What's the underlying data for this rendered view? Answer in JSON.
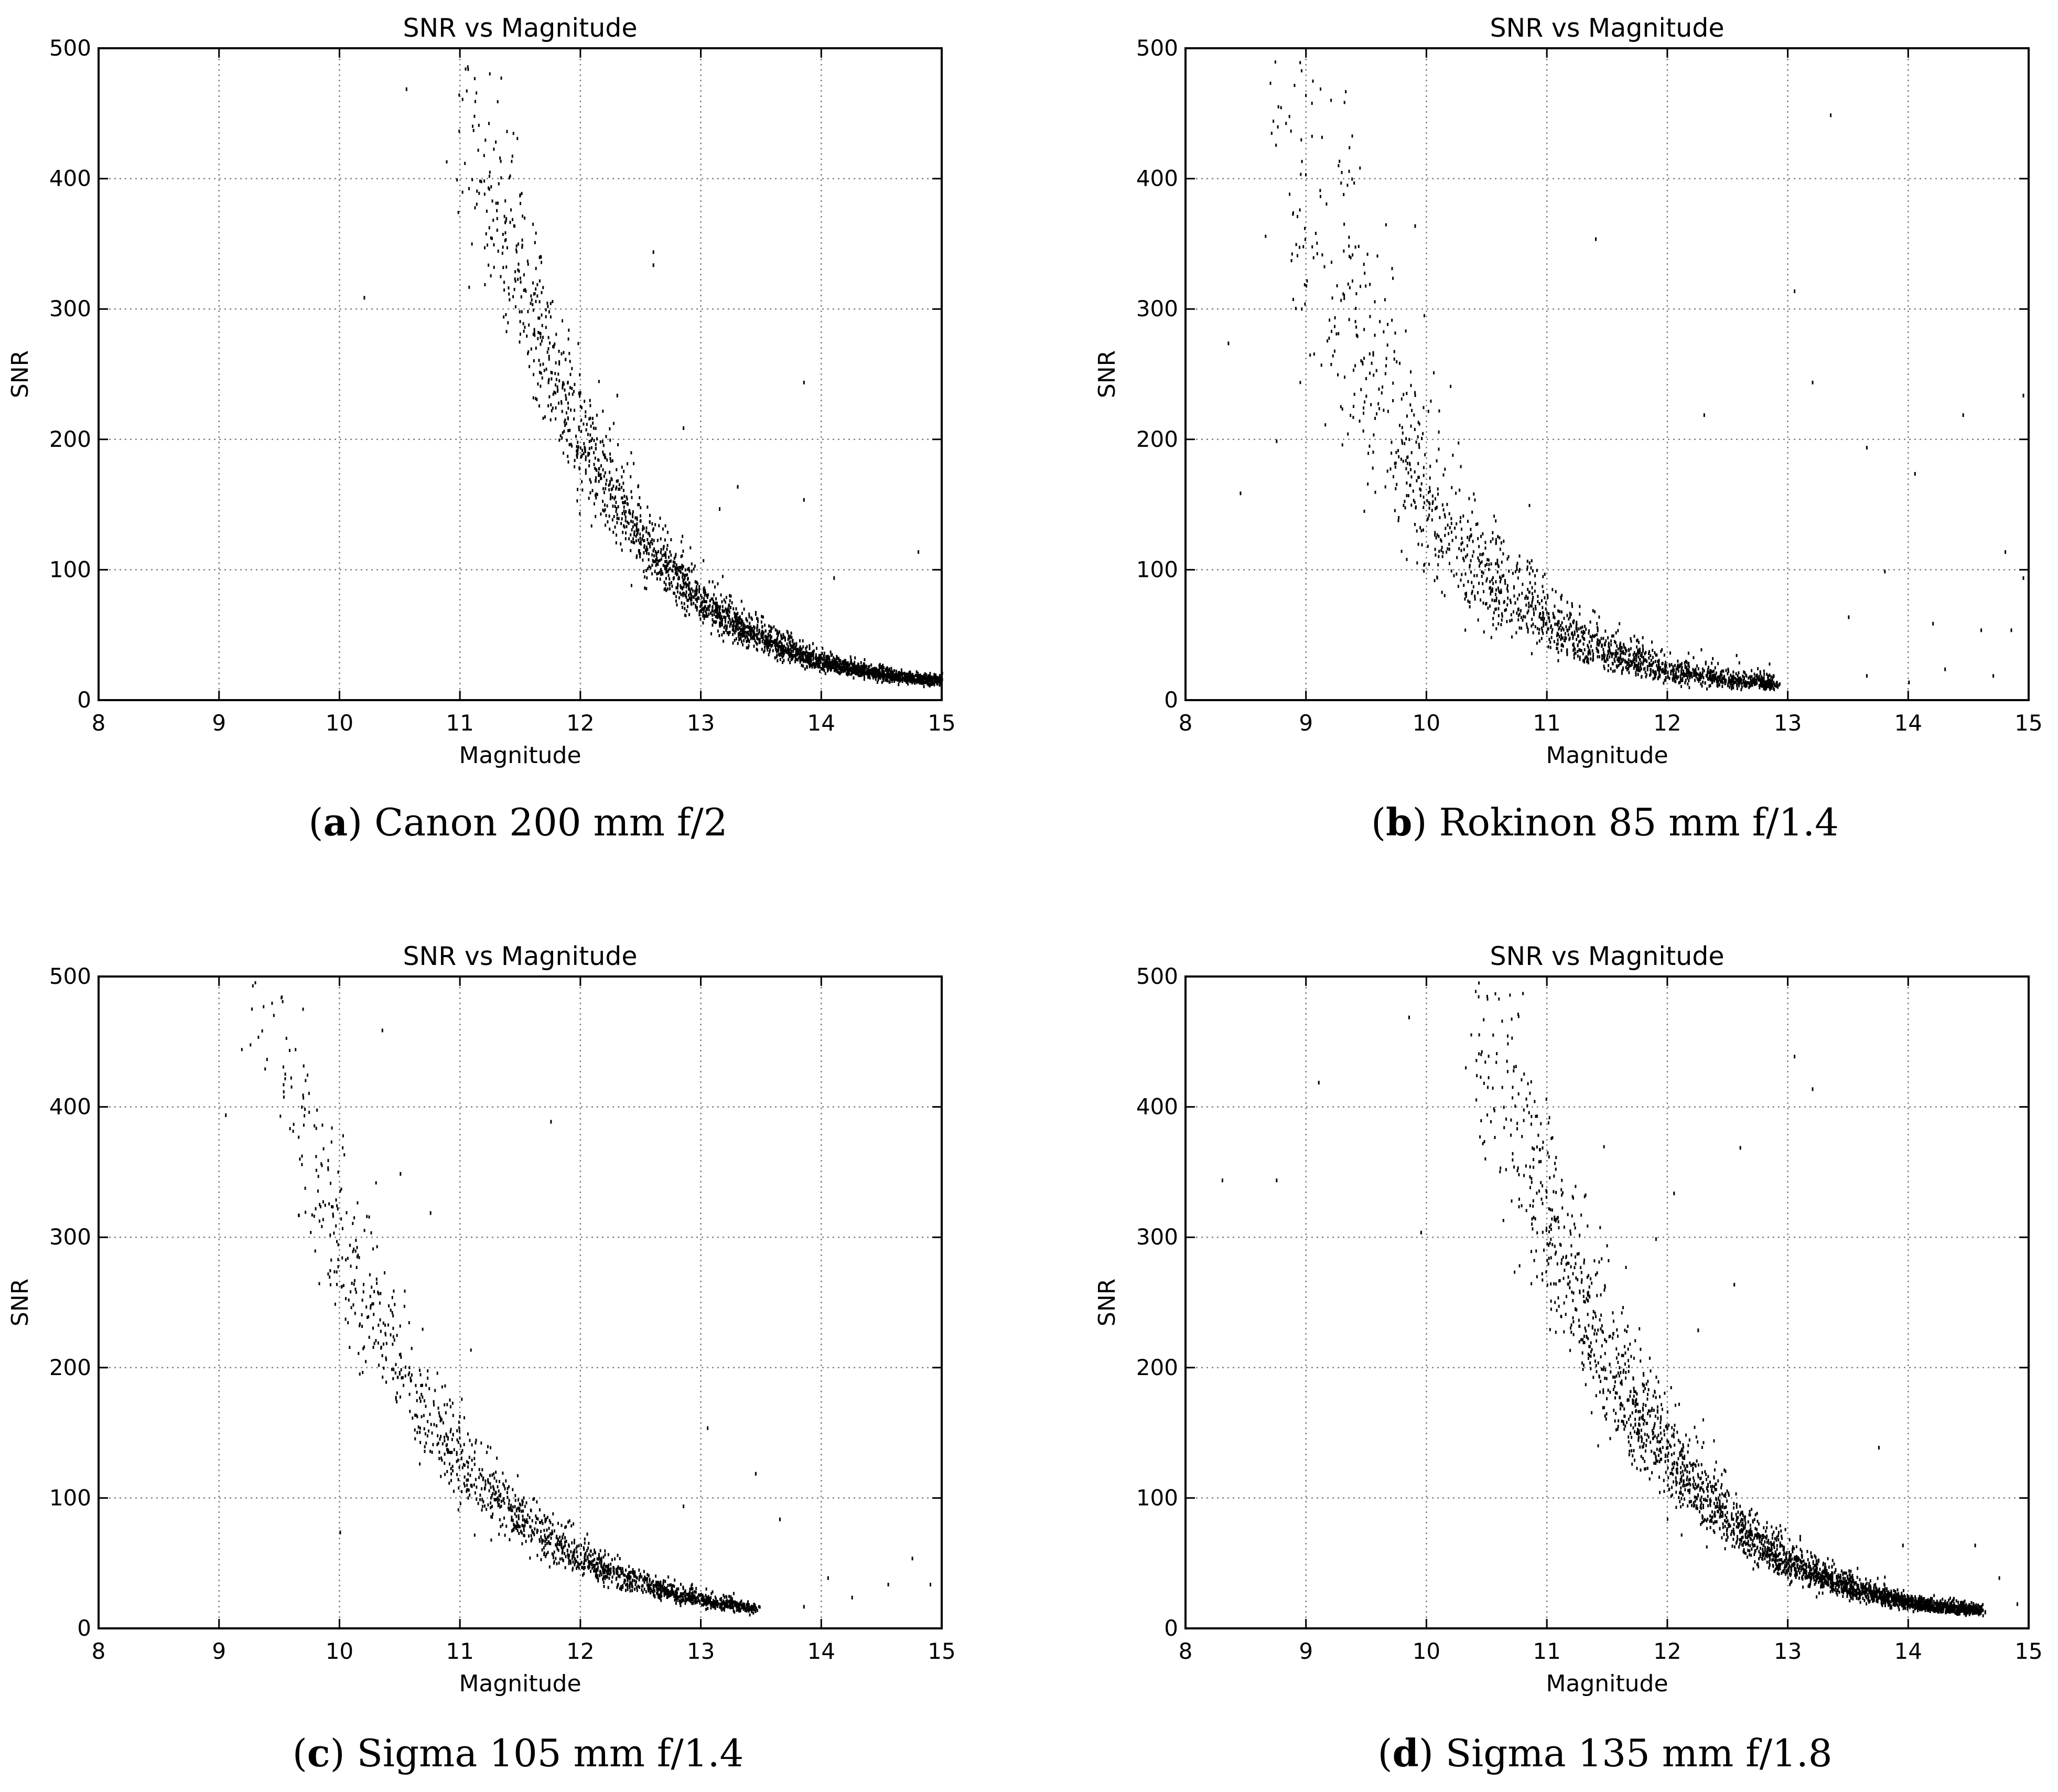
{
  "figure": {
    "colors": {
      "background": "#ffffff",
      "axes": "#000000",
      "grid": "#808080",
      "points": "#000000"
    }
  },
  "chart_data": [
    {
      "id": "a",
      "type": "scatter",
      "title": "SNR vs Magnitude",
      "xlabel": "Magnitude",
      "ylabel": "SNR",
      "xlim": [
        8,
        15
      ],
      "ylim": [
        0,
        500
      ],
      "xticks": [
        8,
        9,
        10,
        11,
        12,
        13,
        14,
        15
      ],
      "yticks": [
        0,
        100,
        200,
        300,
        400,
        500
      ],
      "grid": true,
      "caption_letter": "a",
      "caption_text": "Canon 200 mm f/2",
      "curve_points": [
        [
          10.9,
          500
        ],
        [
          11.2,
          410
        ],
        [
          11.5,
          320
        ],
        [
          11.8,
          245
        ],
        [
          12.1,
          185
        ],
        [
          12.4,
          140
        ],
        [
          12.7,
          105
        ],
        [
          13.0,
          77
        ],
        [
          13.3,
          58
        ],
        [
          13.6,
          45
        ],
        [
          13.9,
          33
        ],
        [
          14.2,
          26
        ],
        [
          14.5,
          21
        ],
        [
          14.8,
          17
        ],
        [
          15.0,
          16
        ]
      ],
      "n_points": 2600,
      "spread": 0.12,
      "outliers": [
        [
          10.2,
          310
        ],
        [
          10.55,
          470
        ],
        [
          12.6,
          345
        ],
        [
          12.6,
          335
        ],
        [
          13.85,
          245
        ],
        [
          13.85,
          155
        ],
        [
          12.3,
          235
        ],
        [
          12.85,
          210
        ],
        [
          13.3,
          165
        ],
        [
          13.15,
          148
        ],
        [
          14.8,
          115
        ],
        [
          14.1,
          95
        ]
      ]
    },
    {
      "id": "b",
      "type": "scatter",
      "title": "SNR vs Magnitude",
      "xlabel": "Magnitude",
      "ylabel": "SNR",
      "xlim": [
        8,
        15
      ],
      "ylim": [
        0,
        500
      ],
      "xticks": [
        8,
        9,
        10,
        11,
        12,
        13,
        14,
        15
      ],
      "yticks": [
        0,
        100,
        200,
        300,
        400,
        500
      ],
      "grid": true,
      "caption_letter": "b",
      "caption_text": "Rokinon 85 mm f/1.4",
      "curve_points": [
        [
          8.6,
          500
        ],
        [
          8.9,
          420
        ],
        [
          9.2,
          330
        ],
        [
          9.5,
          260
        ],
        [
          9.8,
          195
        ],
        [
          10.1,
          140
        ],
        [
          10.4,
          105
        ],
        [
          10.7,
          80
        ],
        [
          11.0,
          60
        ],
        [
          11.3,
          45
        ],
        [
          11.6,
          35
        ],
        [
          11.9,
          26
        ],
        [
          12.2,
          20
        ],
        [
          12.5,
          17
        ],
        [
          12.9,
          14
        ]
      ],
      "n_points": 1700,
      "spread": 0.22,
      "outliers": [
        [
          8.35,
          275
        ],
        [
          8.45,
          160
        ],
        [
          8.75,
          200
        ],
        [
          9.9,
          365
        ],
        [
          11.4,
          355
        ],
        [
          13.35,
          450
        ],
        [
          13.05,
          315
        ],
        [
          13.2,
          245
        ],
        [
          13.65,
          195
        ],
        [
          14.05,
          175
        ],
        [
          14.95,
          235
        ],
        [
          14.45,
          220
        ],
        [
          12.3,
          220
        ],
        [
          13.8,
          100
        ],
        [
          14.8,
          115
        ],
        [
          14.95,
          95
        ],
        [
          13.5,
          65
        ],
        [
          14.2,
          60
        ],
        [
          14.6,
          55
        ],
        [
          14.85,
          55
        ],
        [
          14.3,
          25
        ],
        [
          14.7,
          20
        ],
        [
          13.65,
          20
        ],
        [
          14.0,
          15
        ]
      ]
    },
    {
      "id": "c",
      "type": "scatter",
      "title": "SNR vs Magnitude",
      "xlabel": "Magnitude",
      "ylabel": "SNR",
      "xlim": [
        8,
        15
      ],
      "ylim": [
        0,
        500
      ],
      "xticks": [
        8,
        9,
        10,
        11,
        12,
        13,
        14,
        15
      ],
      "yticks": [
        0,
        100,
        200,
        300,
        400,
        500
      ],
      "grid": true,
      "caption_letter": "c",
      "caption_text": "Sigma 105 mm f/1.4",
      "curve_points": [
        [
          9.2,
          500
        ],
        [
          9.5,
          440
        ],
        [
          9.8,
          350
        ],
        [
          10.1,
          280
        ],
        [
          10.4,
          220
        ],
        [
          10.7,
          170
        ],
        [
          11.0,
          130
        ],
        [
          11.3,
          100
        ],
        [
          11.6,
          78
        ],
        [
          11.9,
          60
        ],
        [
          12.2,
          45
        ],
        [
          12.5,
          35
        ],
        [
          12.8,
          27
        ],
        [
          13.1,
          21
        ],
        [
          13.45,
          17
        ]
      ],
      "n_points": 1600,
      "spread": 0.13,
      "outliers": [
        [
          9.05,
          395
        ],
        [
          10.35,
          460
        ],
        [
          10.5,
          350
        ],
        [
          11.75,
          390
        ],
        [
          10.75,
          320
        ],
        [
          13.05,
          155
        ],
        [
          13.45,
          120
        ],
        [
          12.85,
          95
        ],
        [
          13.65,
          85
        ],
        [
          14.75,
          55
        ],
        [
          14.9,
          35
        ],
        [
          14.05,
          40
        ],
        [
          14.55,
          35
        ],
        [
          14.25,
          25
        ],
        [
          13.85,
          18
        ],
        [
          10.0,
          75
        ]
      ]
    },
    {
      "id": "d",
      "type": "scatter",
      "title": "SNR vs Magnitude",
      "xlabel": "Magnitude",
      "ylabel": "SNR",
      "xlim": [
        8,
        15
      ],
      "ylim": [
        0,
        500
      ],
      "xticks": [
        8,
        9,
        10,
        11,
        12,
        13,
        14,
        15
      ],
      "yticks": [
        0,
        100,
        200,
        300,
        400,
        500
      ],
      "grid": true,
      "caption_letter": "d",
      "caption_text": "Sigma 135 mm f/1.8",
      "curve_points": [
        [
          10.3,
          500
        ],
        [
          10.6,
          430
        ],
        [
          10.9,
          345
        ],
        [
          11.2,
          270
        ],
        [
          11.5,
          205
        ],
        [
          11.8,
          160
        ],
        [
          12.1,
          120
        ],
        [
          12.4,
          92
        ],
        [
          12.7,
          70
        ],
        [
          13.0,
          52
        ],
        [
          13.3,
          40
        ],
        [
          13.6,
          30
        ],
        [
          13.9,
          23
        ],
        [
          14.2,
          18
        ],
        [
          14.6,
          15
        ]
      ],
      "n_points": 2800,
      "spread": 0.14,
      "outliers": [
        [
          8.3,
          345
        ],
        [
          8.75,
          345
        ],
        [
          9.1,
          420
        ],
        [
          9.85,
          470
        ],
        [
          9.95,
          305
        ],
        [
          13.05,
          440
        ],
        [
          13.2,
          415
        ],
        [
          12.05,
          335
        ],
        [
          12.6,
          370
        ],
        [
          12.55,
          265
        ],
        [
          13.75,
          140
        ],
        [
          13.95,
          65
        ],
        [
          14.55,
          65
        ],
        [
          14.75,
          40
        ],
        [
          14.9,
          20
        ],
        [
          12.25,
          230
        ],
        [
          11.9,
          300
        ]
      ]
    }
  ]
}
